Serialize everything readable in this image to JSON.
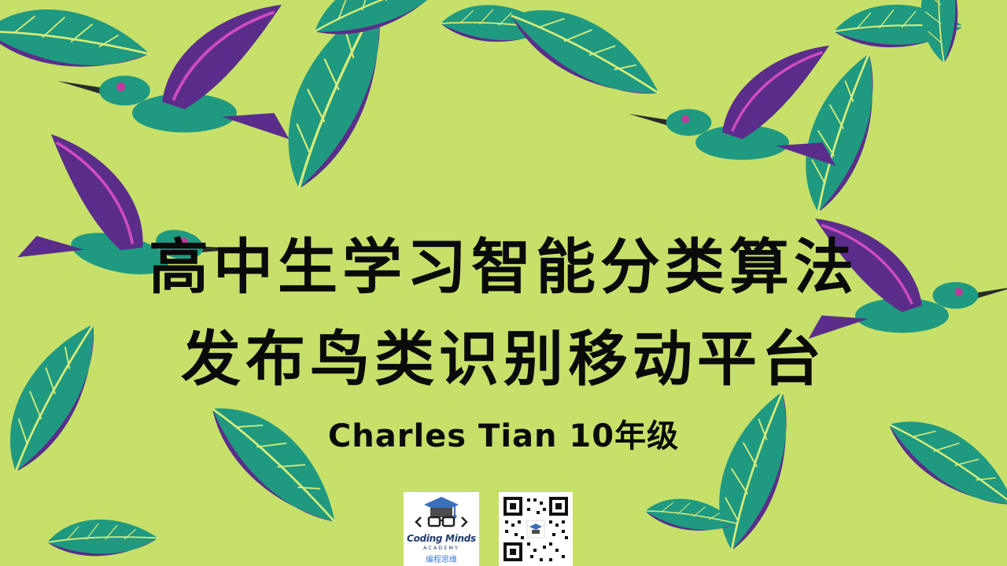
{
  "slide": {
    "title_line1": "高中生学习智能分类算法",
    "title_line2": "发布鸟类识别移动平台",
    "author": "Charles Tian 10年级"
  },
  "logo": {
    "brand": "Coding Minds",
    "sub": "ACADEMY",
    "cn": "编程思维"
  },
  "colors": {
    "background": "#c6e06a",
    "leaf_teal": "#1f9a80",
    "leaf_purple": "#5b2d8a",
    "text": "#0a0a0a"
  }
}
